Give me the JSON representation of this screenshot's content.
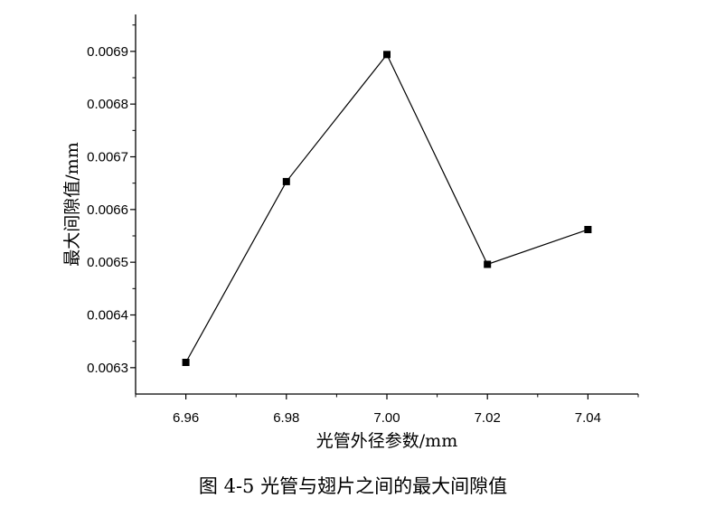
{
  "chart_data": {
    "type": "line",
    "x": [
      6.96,
      6.98,
      7.0,
      7.02,
      7.04
    ],
    "series": [
      {
        "values": [
          0.00631,
          0.006653,
          0.006894,
          0.006496,
          0.006562
        ]
      }
    ],
    "xlabel": "光管外径参数/mm",
    "ylabel": "最大间隙值/mm",
    "xlim": [
      6.95,
      7.05
    ],
    "ylim": [
      0.00625,
      0.00697
    ],
    "xticks": [
      "6.96",
      "6.98",
      "7.00",
      "7.02",
      "7.04"
    ],
    "yticks": [
      "0.0063",
      "0.0064",
      "0.0065",
      "0.0066",
      "0.0067",
      "0.0068",
      "0.0069"
    ],
    "grid": false,
    "marker": "square",
    "color": "#000000"
  },
  "caption": "图 4-5  光管与翅片之间的最大间隙值"
}
